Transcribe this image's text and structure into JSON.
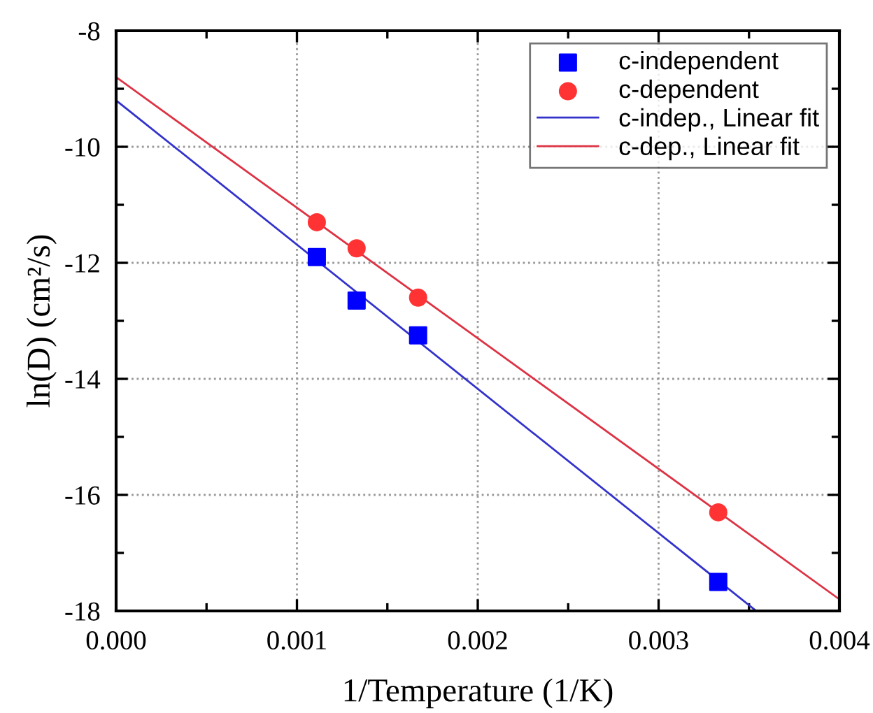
{
  "chart_data": {
    "type": "scatter",
    "xlabel": "1/Temperature (1/K)",
    "ylabel": "ln(D) (cm²/s)",
    "xlim": [
      0,
      0.004
    ],
    "ylim": [
      -18,
      -8
    ],
    "xticks": [
      {
        "value": 0,
        "label": "0.000"
      },
      0.001,
      0.002,
      0.003,
      0.004
    ],
    "yticks": [
      -18,
      -16,
      -14,
      -12,
      -10,
      -8
    ],
    "grid": true,
    "legend": "top right",
    "series": [
      {
        "name": "c-independent",
        "marker": "square",
        "color": "#0000ff",
        "x": [
          0.00111,
          0.00133,
          0.00167,
          0.00333
        ],
        "values": [
          -11.9,
          -12.65,
          -13.25,
          -17.5
        ]
      },
      {
        "name": "c-dependent",
        "marker": "circle",
        "color": "#ff3333",
        "x": [
          0.00111,
          0.00133,
          0.00167,
          0.00333
        ],
        "values": [
          -11.3,
          -11.75,
          -12.6,
          -16.3
        ]
      },
      {
        "name": "c-indep., Linear fit",
        "type": "line",
        "marker": "none",
        "line_style": "solid",
        "color": "#3333cc",
        "x": [
          0,
          0.00354
        ],
        "values": [
          -9.2,
          -18
        ]
      },
      {
        "name": "c-dep., Linear fit",
        "type": "line",
        "marker": "none",
        "line_style": "solid",
        "color": "#dd3344",
        "x": [
          0,
          0.004
        ],
        "values": [
          -8.8,
          -17.8
        ]
      }
    ]
  }
}
